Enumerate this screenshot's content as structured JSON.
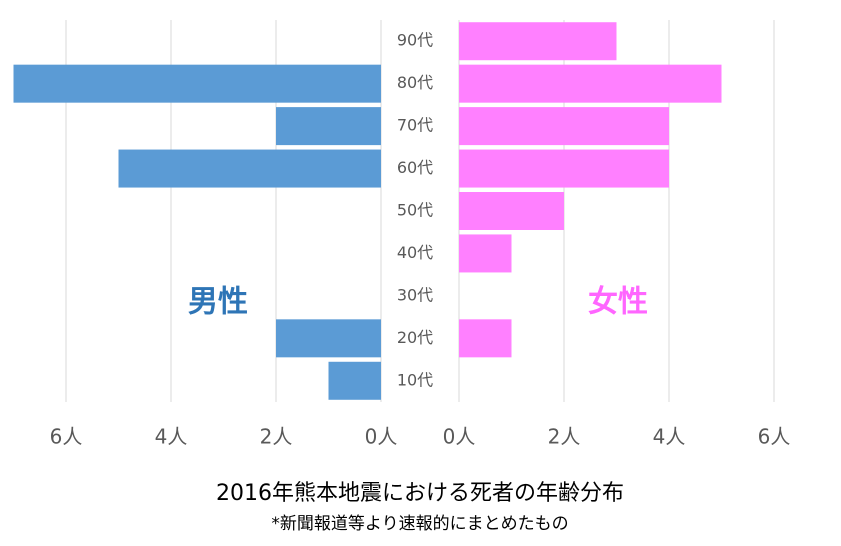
{
  "chart_data": {
    "type": "butterfly",
    "title": "2016年熊本地震における死者の年齢分布",
    "subtitle": "*新聞報道等より速報的にまとめたもの",
    "categories": [
      "90代",
      "80代",
      "70代",
      "60代",
      "50代",
      "40代",
      "30代",
      "20代",
      "10代"
    ],
    "grid": true,
    "series": [
      {
        "name": "男性",
        "color": "#5b9bd5",
        "label_color": "#2e75b6",
        "side": "left",
        "values": [
          0,
          7,
          2,
          5,
          0,
          0,
          0,
          2,
          1
        ],
        "xlim": [
          0,
          7
        ],
        "xticks": [
          {
            "value": 0,
            "label": "0人"
          },
          {
            "value": 2,
            "label": "2人"
          },
          {
            "value": 4,
            "label": "4人"
          },
          {
            "value": 6,
            "label": "6人"
          }
        ]
      },
      {
        "name": "女性",
        "color": "#ff80ff",
        "label_color": "#ff66ff",
        "side": "right",
        "values": [
          3,
          5,
          4,
          4,
          2,
          1,
          0,
          1,
          0
        ],
        "xlim": [
          0,
          7
        ],
        "xticks": [
          {
            "value": 0,
            "label": "0人"
          },
          {
            "value": 2,
            "label": "2人"
          },
          {
            "value": 4,
            "label": "4人"
          },
          {
            "value": 6,
            "label": "6人"
          }
        ]
      }
    ]
  }
}
